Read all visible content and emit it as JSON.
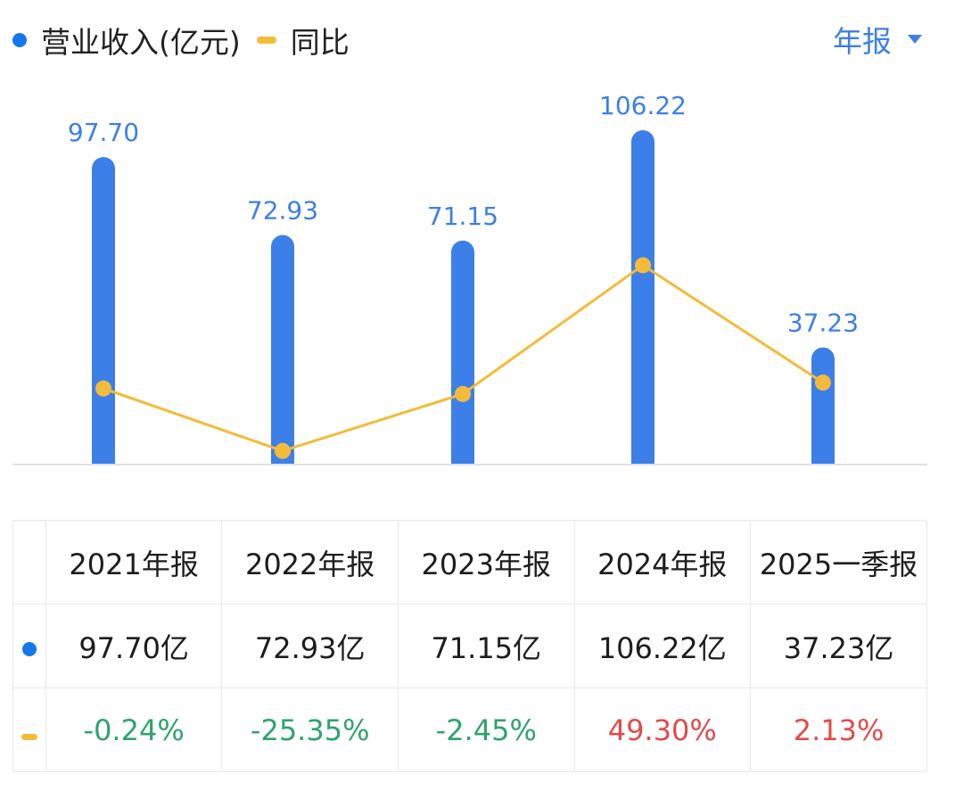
{
  "legend": {
    "revenue_label": "营业收入(亿元)",
    "yoy_label": "同比"
  },
  "period_selector": {
    "label": "年报"
  },
  "colors": {
    "bar": "#3d7fe8",
    "line": "#f4bb3a",
    "positive": "#e14b4b",
    "negative": "#2fa36e",
    "axis": "#dfe3e8"
  },
  "chart_data": {
    "type": "bar",
    "categories": [
      "2021年报",
      "2022年报",
      "2023年报",
      "2024年报",
      "2025一季报"
    ],
    "series": [
      {
        "name": "营业收入(亿元)",
        "type": "bar",
        "values": [
          97.7,
          72.93,
          71.15,
          106.22,
          37.23
        ],
        "labels": [
          "97.70",
          "72.93",
          "71.15",
          "106.22",
          "37.23"
        ]
      },
      {
        "name": "同比",
        "type": "line",
        "values": [
          -0.24,
          -25.35,
          -2.45,
          49.3,
          2.13
        ]
      }
    ]
  },
  "table": {
    "headers": [
      "2021年报",
      "2022年报",
      "2023年报",
      "2024年报",
      "2025一季报"
    ],
    "revenue": [
      "97.70亿",
      "72.93亿",
      "71.15亿",
      "106.22亿",
      "37.23亿"
    ],
    "yoy": [
      "-0.24%",
      "-25.35%",
      "-2.45%",
      "49.30%",
      "2.13%"
    ]
  }
}
